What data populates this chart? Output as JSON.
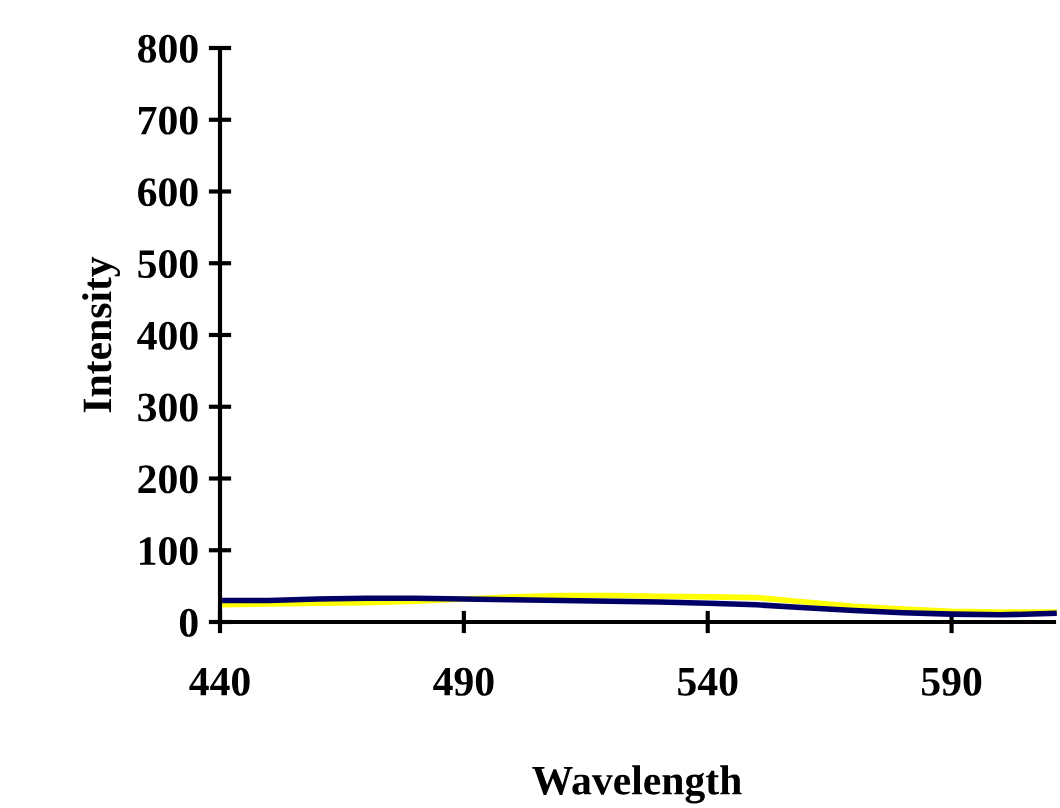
{
  "chart_data": {
    "type": "line",
    "xlabel": "Wavelength",
    "ylabel": "Intensity",
    "xlim": [
      440,
      611
    ],
    "xticks": [
      440,
      490,
      540,
      590
    ],
    "ylim": [
      0,
      800
    ],
    "yticks": [
      0,
      100,
      200,
      300,
      400,
      500,
      600,
      700,
      800
    ],
    "grid": false,
    "legend": false,
    "marker": "none",
    "line_style": "solid",
    "series": [
      {
        "color": "#ffff00",
        "x": [
          441,
          450,
          460,
          470,
          480,
          490,
          500,
          510,
          520,
          530,
          540,
          550,
          560,
          570,
          580,
          590,
          600,
          611
        ],
        "values": [
          24,
          25,
          26,
          27,
          29,
          32,
          35,
          37,
          37,
          36,
          35,
          34,
          28,
          22,
          18,
          15,
          14,
          14
        ]
      },
      {
        "color": "#000066",
        "x": [
          441,
          450,
          460,
          470,
          480,
          490,
          500,
          510,
          520,
          530,
          540,
          550,
          560,
          570,
          580,
          590,
          600,
          611
        ],
        "values": [
          30,
          30,
          32,
          33,
          33,
          32,
          31,
          30,
          29,
          28,
          26,
          24,
          20,
          16,
          13,
          11,
          10,
          12
        ]
      }
    ]
  }
}
